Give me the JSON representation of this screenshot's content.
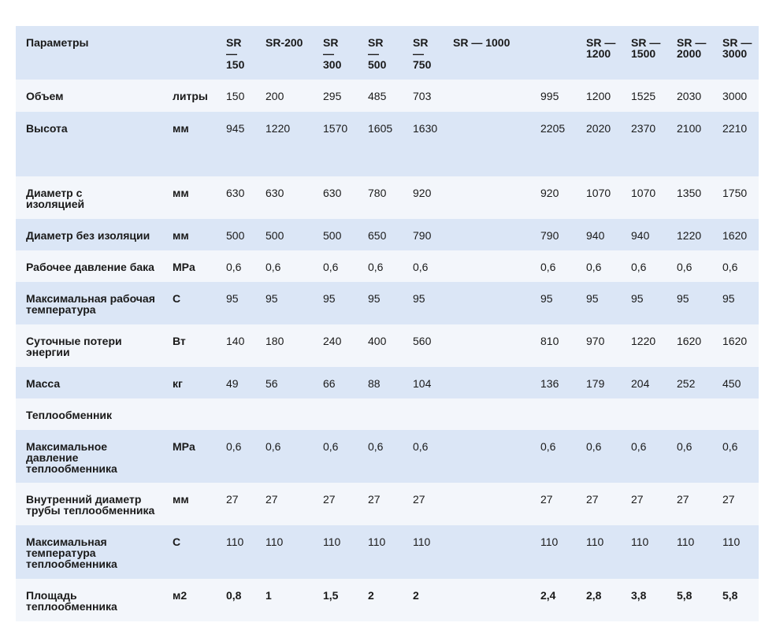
{
  "columns": [
    "Параметры",
    "",
    "SR\n—\n150",
    "SR-200",
    "SR\n—\n300",
    "SR\n—\n500",
    "SR\n—\n750",
    "SR — 1000",
    "",
    "SR —\n1200",
    "SR —\n1500",
    "SR —\n2000",
    "SR —\n3000"
  ],
  "rows": [
    {
      "label": "Объем",
      "unit": "литры",
      "values": [
        "150",
        "200",
        "295",
        "485",
        "703",
        "",
        "995",
        "1200",
        "1525",
        "2030",
        "3000"
      ]
    },
    {
      "label": "Высота",
      "unit": "мм",
      "values": [
        "945",
        "1220",
        "1570",
        "1605",
        "1630",
        "",
        "2205",
        "2020",
        "2370",
        "2100",
        "2210"
      ]
    },
    {
      "label": "Диаметр        с\n                изоляцией",
      "unit": "мм",
      "values": [
        "630",
        "630",
        "630",
        "780",
        "920",
        "",
        "920",
        "1070",
        "1070",
        "1350",
        "1750"
      ]
    },
    {
      "label": "Диаметр без изоляции",
      "unit": "мм",
      "values": [
        "500",
        "500",
        "500",
        "650",
        "790",
        "",
        "790",
        "940",
        "940",
        "1220",
        "1620"
      ]
    },
    {
      "label": "Рабочее давление бака",
      "unit": "MPa",
      "values": [
        "0,6",
        "0,6",
        "0,6",
        "0,6",
        "0,6",
        "",
        "0,6",
        "0,6",
        "0,6",
        "0,6",
        "0,6"
      ]
    },
    {
      "label": "Максимальная рабочая\nтемпература",
      "unit": "С",
      "values": [
        "95",
        "95",
        "95",
        "95",
        "95",
        "",
        "95",
        "95",
        "95",
        "95",
        "95"
      ]
    },
    {
      "label": "Суточные потери\nэнергии",
      "unit": "Вт",
      "values": [
        "140",
        "180",
        "240",
        "400",
        "560",
        "",
        "810",
        "970",
        "1220",
        "1620",
        "1620"
      ]
    },
    {
      "label": "Масса",
      "unit": "кг",
      "values": [
        "49",
        "56",
        "66",
        "88",
        "104",
        "",
        "136",
        "179",
        "204",
        "252",
        "450"
      ]
    },
    {
      "label": "Теплообменник",
      "unit": "",
      "values": [
        "",
        "",
        "",
        "",
        "",
        "",
        "",
        "",
        "",
        "",
        ""
      ]
    },
    {
      "label": "Максимальное\nдавление\nтеплообменника",
      "unit": "MPa",
      "values": [
        "0,6",
        "0,6",
        "0,6",
        "0,6",
        "0,6",
        "",
        "0,6",
        "0,6",
        "0,6",
        "0,6",
        "0,6"
      ]
    },
    {
      "label": "Внутренний диаметр\nтрубы теплообменника",
      "unit": "мм",
      "values": [
        "27",
        "27",
        "27",
        "27",
        "27",
        "",
        "27",
        "27",
        "27",
        "27",
        "27"
      ]
    },
    {
      "label": "Максимальная\nтемпература\nтеплообменника",
      "unit": "С",
      "values": [
        "110",
        "110",
        "110",
        "110",
        "110",
        "",
        "110",
        "110",
        "110",
        "110",
        "110"
      ]
    },
    {
      "label": "Площадь\nтеплообменника",
      "unit": "м2",
      "values": [
        "0,8",
        "1",
        "1,5",
        "2",
        "2",
        "",
        "2,4",
        "2,8",
        "3,8",
        "5,8",
        "5,8"
      ],
      "bold": true
    }
  ]
}
